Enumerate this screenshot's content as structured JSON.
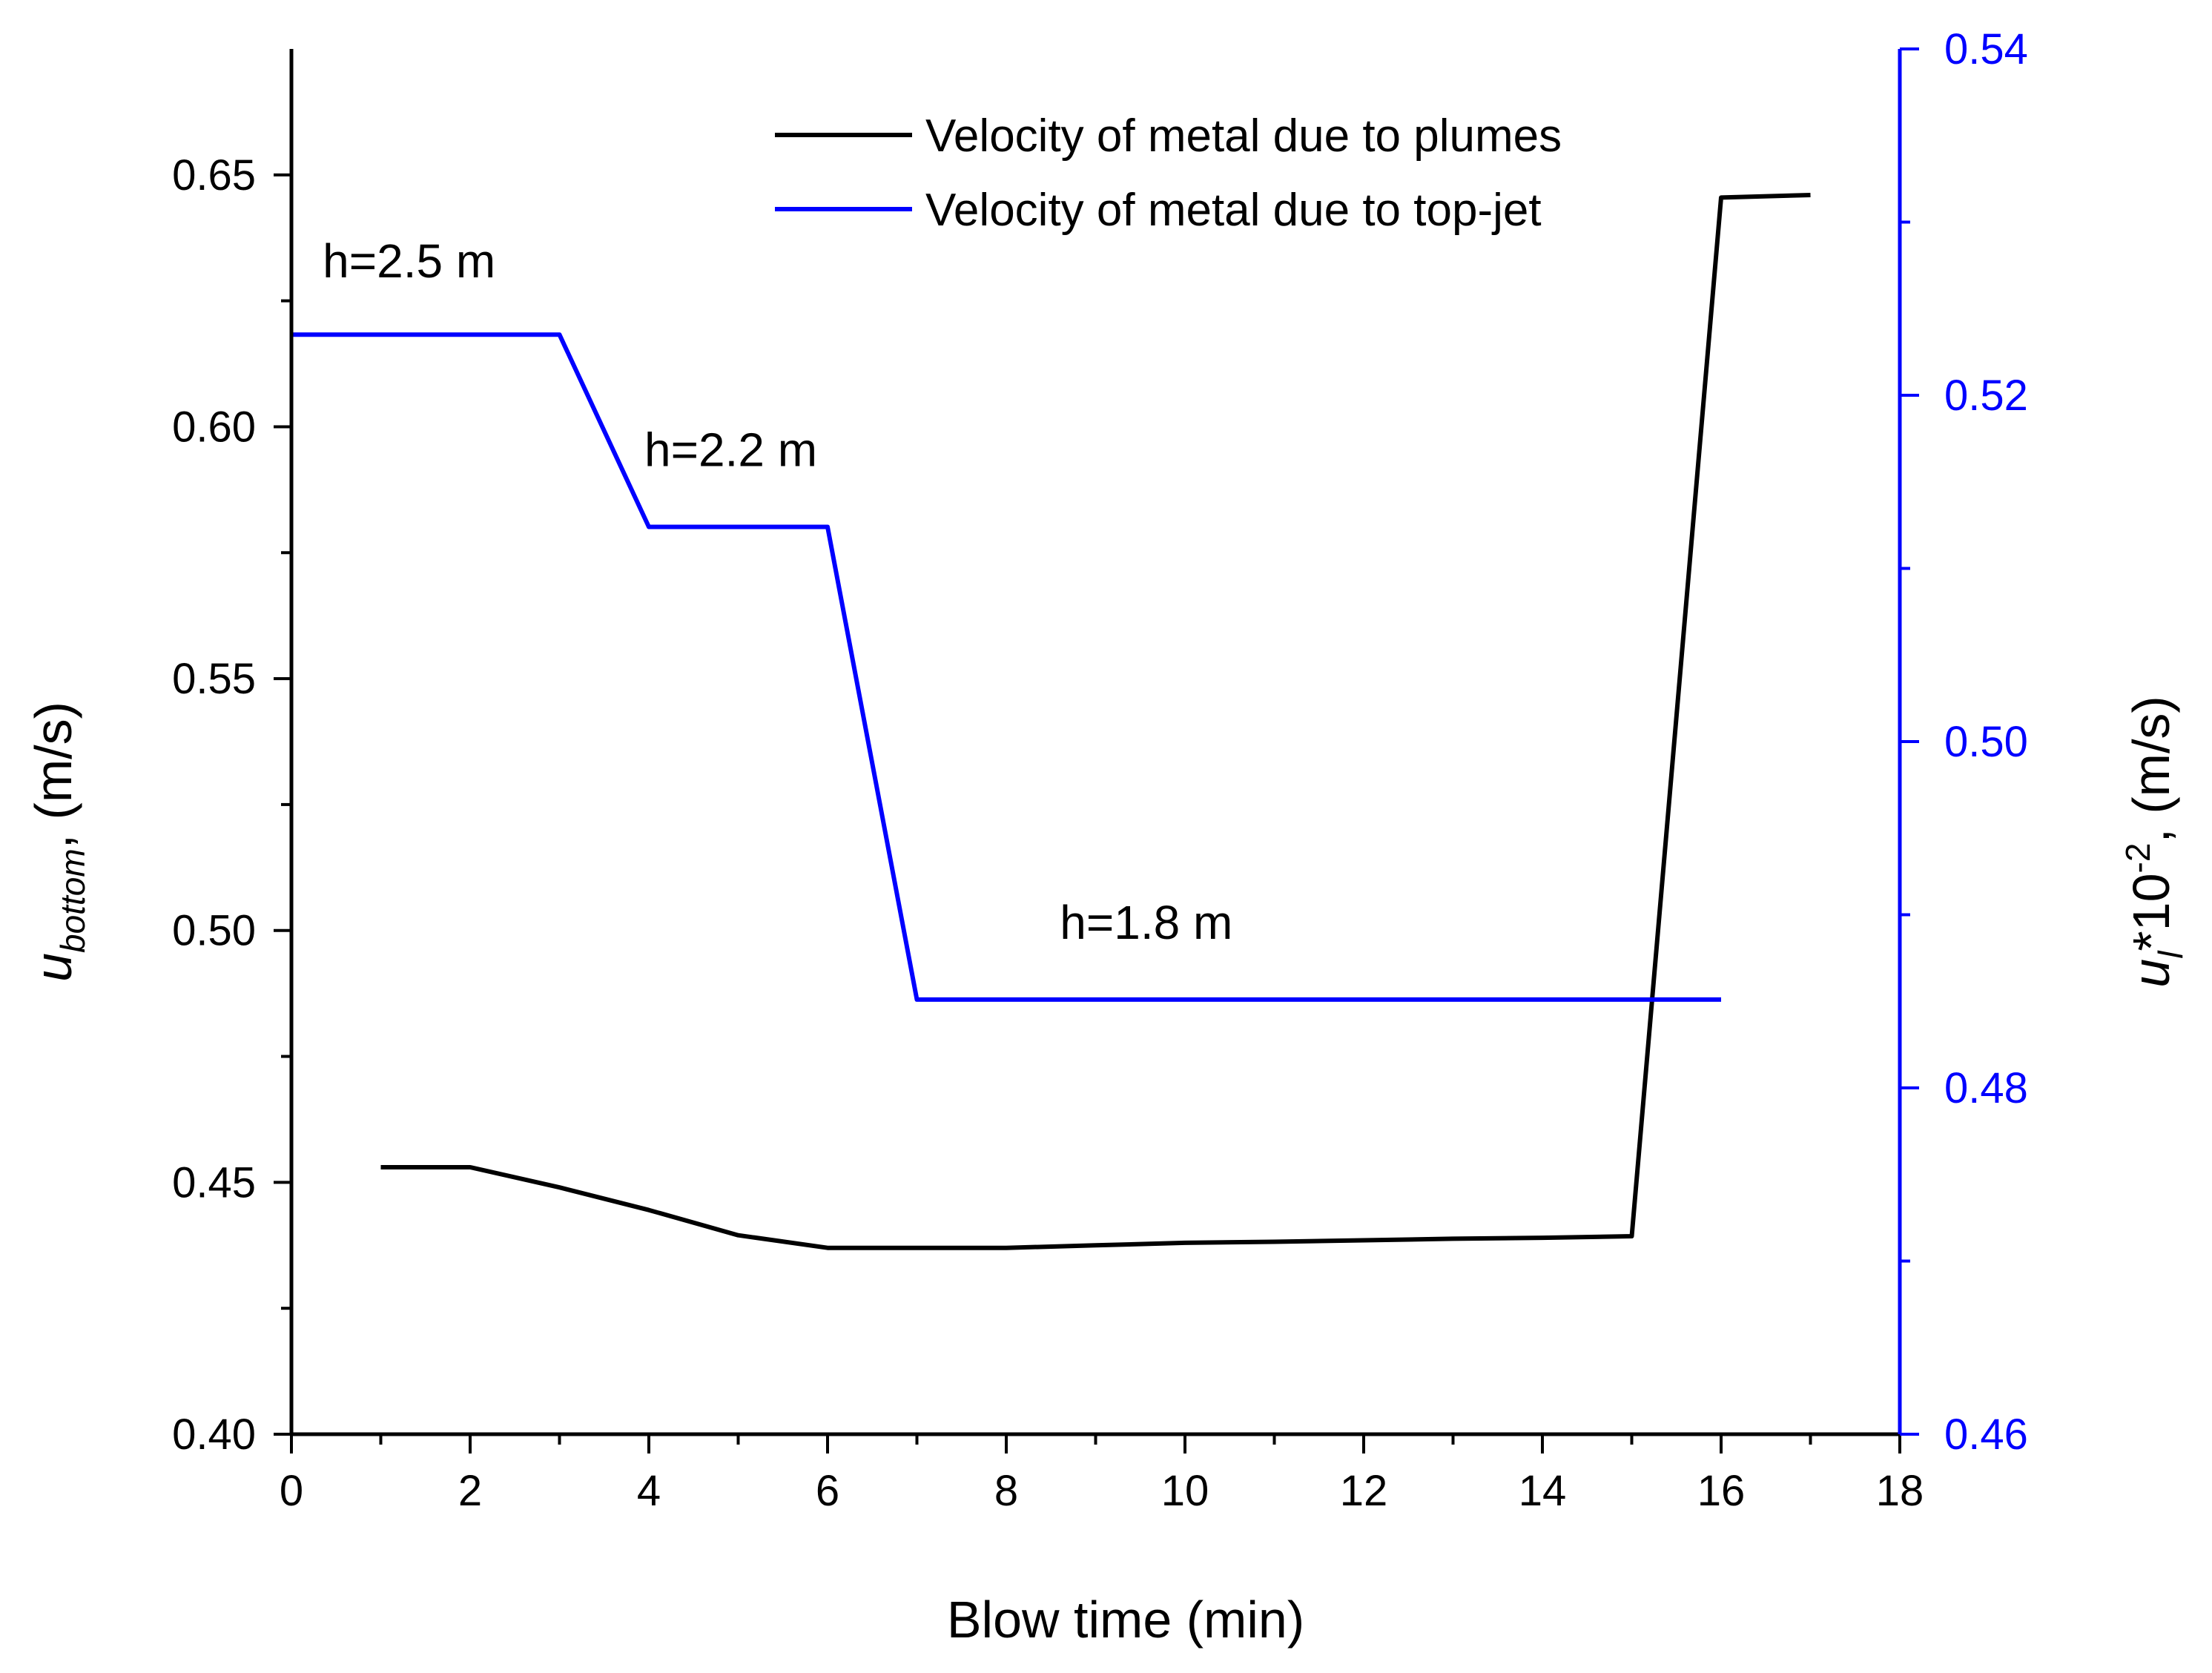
{
  "chart_data": {
    "type": "line",
    "title": "",
    "xlabel": "Blow time (min)",
    "ylabel_left": {
      "base": "u",
      "sub": "bottom",
      "tail": ", (m/s)"
    },
    "ylabel_right": {
      "base": "u",
      "sub": "l",
      "mid": "*10",
      "sup": "-2",
      "tail": ", (m/s)"
    },
    "xlim": [
      0,
      18
    ],
    "ylim_left": [
      0.4,
      0.675
    ],
    "ylim_right": [
      0.46,
      0.54
    ],
    "x_ticks": [
      "0",
      "2",
      "4",
      "6",
      "8",
      "10",
      "12",
      "14",
      "16",
      "18"
    ],
    "y_left_ticks": [
      "0.40",
      "0.45",
      "0.50",
      "0.55",
      "0.60",
      "0.65"
    ],
    "y_right_ticks": [
      "0.46",
      "0.48",
      "0.50",
      "0.52",
      "0.54"
    ],
    "colors": {
      "axis": "#000000",
      "right_axis": "#0000ff",
      "plumes": "#000000",
      "top_jet": "#0000ff"
    },
    "legend_position": "top-right",
    "series": [
      {
        "name": "Velocity of metal due to plumes",
        "axis": "left",
        "x": [
          1,
          2,
          3,
          4,
          5,
          6,
          7,
          8,
          9,
          10,
          11,
          12,
          13,
          14,
          15,
          16,
          17
        ],
        "y": [
          0.453,
          0.453,
          0.449,
          0.4445,
          0.4395,
          0.437,
          0.437,
          0.437,
          0.4375,
          0.438,
          0.4382,
          0.4385,
          0.4388,
          0.439,
          0.4393,
          0.6455,
          0.646
        ]
      },
      {
        "name": "Velocity of metal due to top-jet",
        "axis": "right",
        "x": [
          0,
          3,
          4,
          6,
          7,
          16
        ],
        "y": [
          0.5235,
          0.5235,
          0.5124,
          0.5124,
          0.4851,
          0.4851
        ]
      }
    ],
    "annotations": [
      {
        "text": "h=2.5 m",
        "x": 0.35,
        "y": 0.5268
      },
      {
        "text": "h=2.2 m",
        "x": 3.95,
        "y": 0.5159
      },
      {
        "text": "h=1.8 m",
        "x": 8.6,
        "y": 0.4886
      }
    ]
  }
}
